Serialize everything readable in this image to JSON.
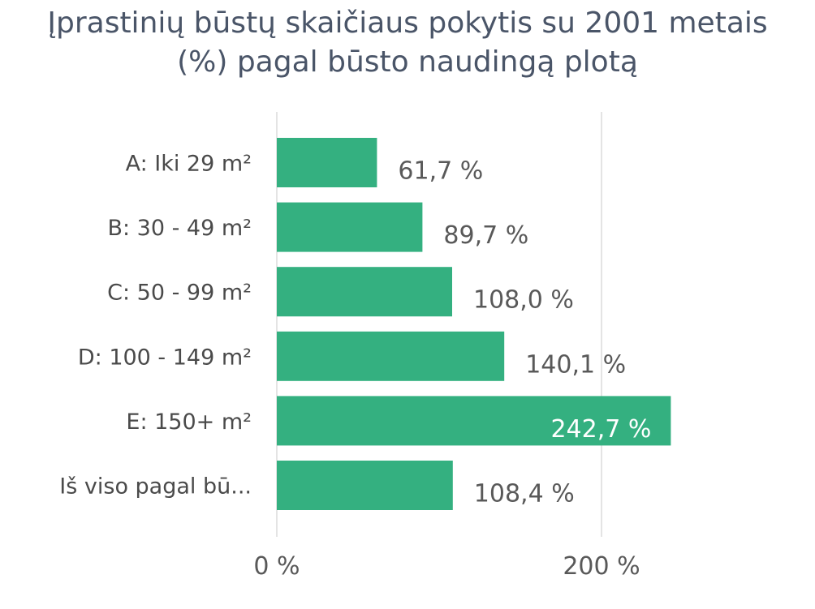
{
  "chart_data": {
    "type": "bar",
    "orientation": "horizontal",
    "title": [
      "Įprastinių būstų skaičiaus pokytis su 2001 metais",
      "(%) pagal būsto naudingą plotą"
    ],
    "categories": [
      "A: Iki 29 m²",
      "B: 30 - 49 m²",
      "C: 50 - 99 m²",
      "D: 100 - 149 m²",
      "E: 150+ m²",
      "Iš viso pagal bū..."
    ],
    "values": [
      61.7,
      89.7,
      108.0,
      140.1,
      242.7,
      108.4
    ],
    "value_labels": [
      "61,7 %",
      "89,7 %",
      "108,0 %",
      "140,1 %",
      "242,7 %",
      "108,4 %"
    ],
    "xlim": [
      0,
      300
    ],
    "x_ticks": [
      0,
      200
    ],
    "x_tick_labels": [
      "0 %",
      "200 %"
    ],
    "grid": true,
    "bar_color": "#34b080",
    "legend": "none"
  }
}
